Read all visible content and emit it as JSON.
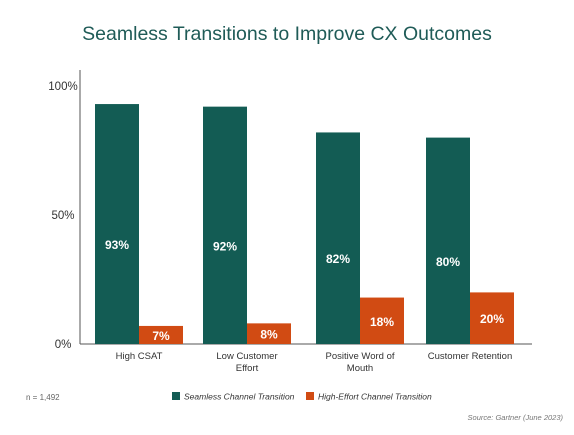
{
  "chart_data": {
    "type": "bar",
    "title": "Seamless Transitions to Improve CX Outcomes",
    "categories": [
      [
        "High CSAT"
      ],
      [
        "Low Customer",
        "Effort"
      ],
      [
        "Positive Word of",
        "Mouth"
      ],
      [
        "Customer Retention"
      ]
    ],
    "series": [
      {
        "name": "Seamless Channel Transition",
        "color": "#135c54",
        "values": [
          93,
          92,
          82,
          80
        ],
        "labels": [
          "93%",
          "92%",
          "82%",
          "80%"
        ]
      },
      {
        "name": "High-Effort Channel Transition",
        "color": "#d14b13",
        "values": [
          7,
          8,
          18,
          20
        ],
        "labels": [
          "7%",
          "8%",
          "18%",
          "20%"
        ]
      }
    ],
    "y_ticks": [
      {
        "value": 0,
        "label": "0%"
      },
      {
        "value": 50,
        "label": "50%"
      },
      {
        "value": 100,
        "label": "100%"
      }
    ],
    "ylim": [
      0,
      100
    ],
    "legend_position": "bottom",
    "grid": false
  },
  "footer": {
    "sample_note": "n = 1,492",
    "source": "Source: Gartner (June 2023)"
  }
}
